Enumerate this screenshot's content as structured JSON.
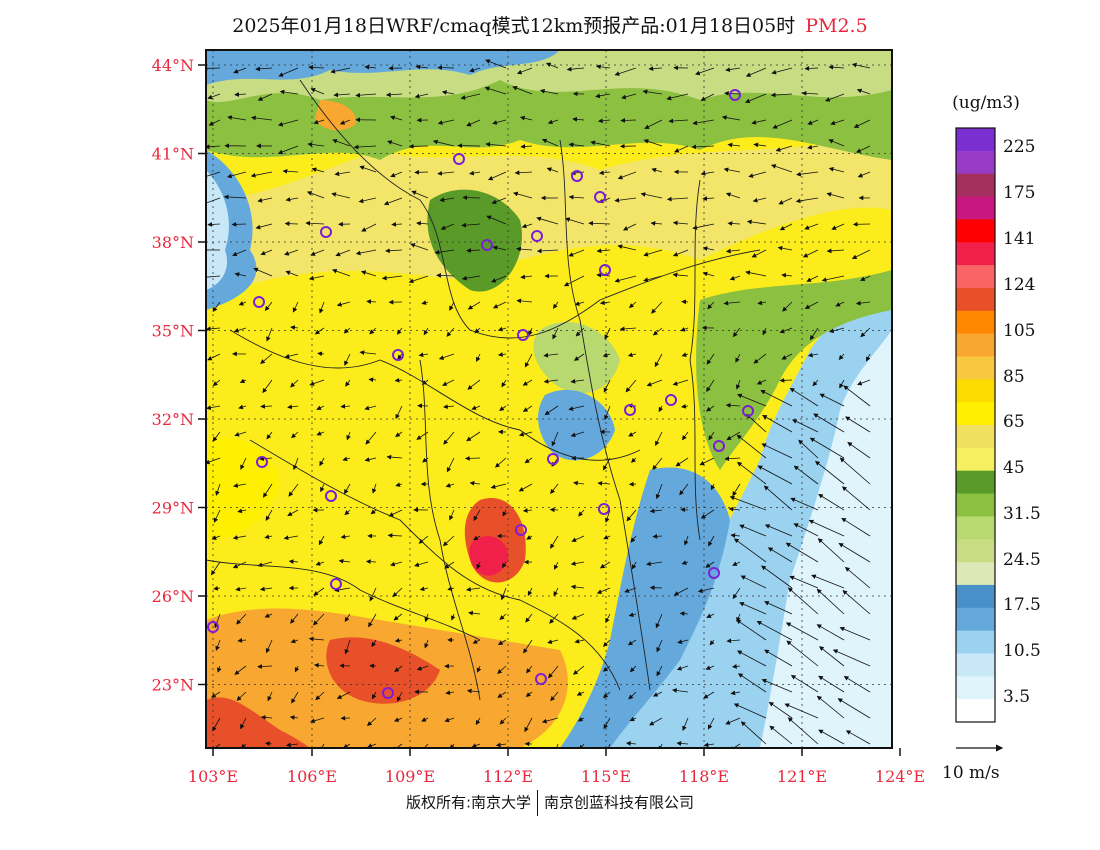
{
  "title": {
    "main": "2025年01月18日WRF/cmaq模式12km预报产品:01月18日05时",
    "species": "PM2.5",
    "species_color": "#e8283c"
  },
  "axes": {
    "lat_labels": [
      "44°N",
      "41°N",
      "38°N",
      "35°N",
      "32°N",
      "29°N",
      "26°N",
      "23°N"
    ],
    "lat_values": [
      44,
      41,
      38,
      35,
      32,
      29,
      26,
      23
    ],
    "lon_labels": [
      "103°E",
      "106°E",
      "109°E",
      "112°E",
      "115°E",
      "118°E",
      "121°E",
      "124°E"
    ],
    "lon_values": [
      103,
      106,
      109,
      112,
      115,
      118,
      121,
      124
    ],
    "label_color": "#e8283c"
  },
  "legend": {
    "unit": "(ug/m3)",
    "labels": [
      "225",
      "175",
      "141",
      "124",
      "105",
      "85",
      "65",
      "45",
      "31.5",
      "24.5",
      "17.5",
      "10.5",
      "3.5"
    ],
    "colors": [
      "#7b2fd1",
      "#9a3bc8",
      "#a4305f",
      "#c8187f",
      "#ff0000",
      "#f0204a",
      "#fa6464",
      "#e8502a",
      "#ff8800",
      "#f8a830",
      "#f8c840",
      "#fcdc00",
      "#fef000",
      "#f0e060",
      "#f4f060",
      "#5a9a28",
      "#8cc040",
      "#b8d870",
      "#c8dc84",
      "#dce8b8",
      "#4a90c8",
      "#64a8dc",
      "#9ad2f0",
      "#c8e8f8",
      "#e0f4fc",
      "#ffffff"
    ],
    "wind_ref_label": "10 m/s"
  },
  "footer": {
    "left": "版权所有:南京大学",
    "right": "南京创蓝科技有限公司"
  }
}
